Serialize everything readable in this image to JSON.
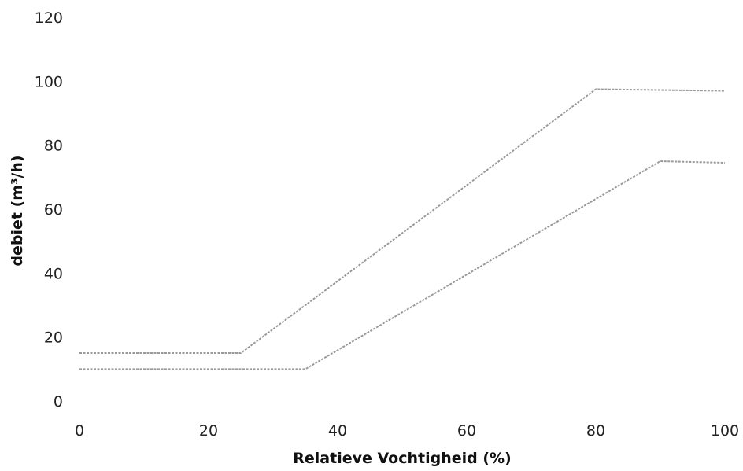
{
  "chart_data": {
    "type": "line",
    "title": "",
    "xlabel": "Relatieve Vochtigheid (%)",
    "ylabel": "debiet (m³/h)",
    "xlim": [
      0,
      100
    ],
    "ylim": [
      0,
      120
    ],
    "x_ticks": [
      "0",
      "20",
      "40",
      "60",
      "80",
      "100"
    ],
    "y_ticks": [
      "0",
      "20",
      "40",
      "60",
      "80",
      "100",
      "120"
    ],
    "grid": false,
    "legend": "none",
    "series": [
      {
        "color": "#9a9a9a",
        "points": [
          [
            0,
            15
          ],
          [
            25,
            15
          ],
          [
            80,
            97.5
          ],
          [
            100,
            97
          ]
        ]
      },
      {
        "color": "#9a9a9a",
        "points": [
          [
            0,
            10
          ],
          [
            35,
            10
          ],
          [
            90,
            75
          ],
          [
            100,
            74.5
          ]
        ]
      }
    ]
  }
}
